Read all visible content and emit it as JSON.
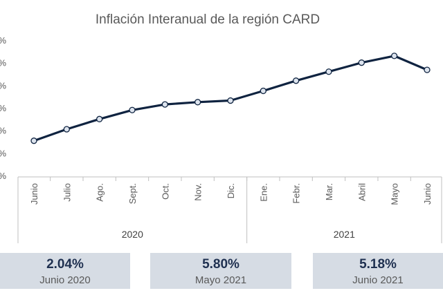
{
  "chart_data": {
    "type": "line",
    "title": "Inflación Interanual de la región CARD",
    "categories": [
      "Junio",
      "Julio",
      "Ago.",
      "Sept.",
      "Oct.",
      "Nov.",
      "Dic.",
      "Ene.",
      "Febr.",
      "Mar.",
      "Abril",
      "Mayo",
      "Junio"
    ],
    "years": [
      {
        "label": "2020",
        "from": 0,
        "to": 6
      },
      {
        "label": "2021",
        "from": 7,
        "to": 12
      }
    ],
    "series": [
      {
        "values": [
          2.04,
          2.55,
          3.0,
          3.4,
          3.65,
          3.75,
          3.82,
          4.25,
          4.7,
          5.1,
          5.5,
          5.8,
          5.18
        ]
      }
    ],
    "ylim": [
      0.5,
      6.5
    ],
    "ytick_labels": [
      "%",
      "%",
      "%",
      "%",
      "%",
      "%",
      "%"
    ],
    "grid": false,
    "line_color": "#0f2340",
    "marker_fill": "#dde4ee"
  },
  "cards": [
    {
      "value": "2.04%",
      "label": "Junio 2020"
    },
    {
      "value": "5.80%",
      "label": "Mayo 2021"
    },
    {
      "value": "5.18%",
      "label": "Junio 2021"
    }
  ]
}
